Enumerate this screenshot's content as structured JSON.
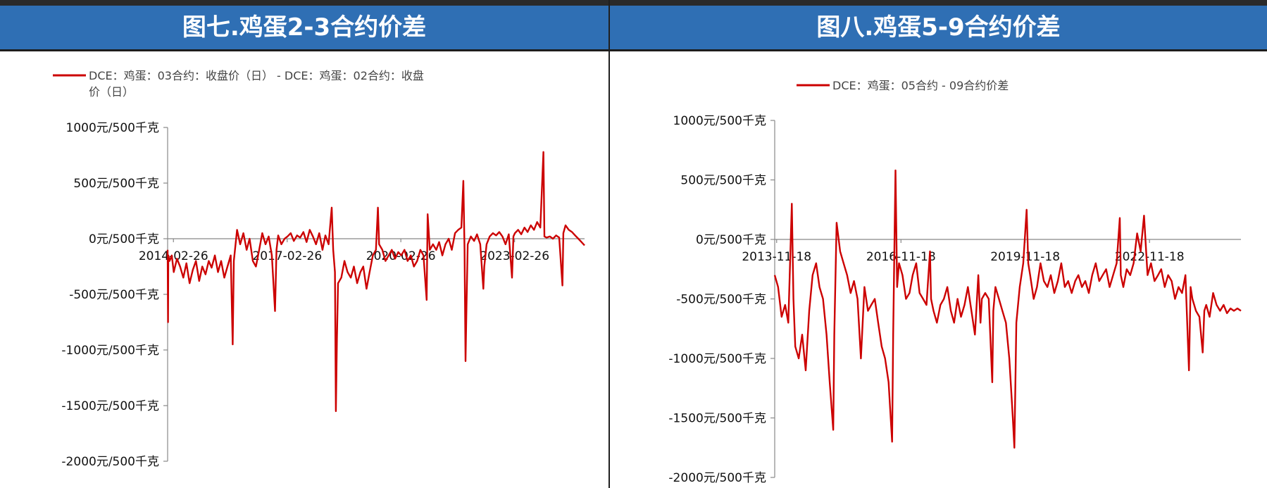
{
  "panels": [
    {
      "title": "图七.鸡蛋2-3合约价差"
    },
    {
      "title": "图八.鸡蛋5-9合约价差"
    }
  ],
  "chart_data": [
    {
      "type": "line",
      "title": "图七.鸡蛋2-3合约价差",
      "legend": [
        "DCE：鸡蛋：03合约：收盘价（日） - DCE：鸡蛋：02合约：收盘",
        "价（日）"
      ],
      "series_color": "#cc0000",
      "ylim": [
        -2000,
        1000
      ],
      "y_ticks": [
        1000,
        500,
        0,
        -500,
        -1000,
        -1500,
        -2000
      ],
      "y_tick_labels": [
        "1000元/500千克",
        "500元/500千克",
        "0元/500千克",
        "-500元/500千克",
        "-1000元/500千克",
        "-1500元/500千克",
        "-2000元/500千克"
      ],
      "x_ticks": [
        "2014-02-26",
        "2017-02-26",
        "2020-02-26",
        "2023-02-26"
      ],
      "x_range": [
        "2014-01-01",
        "2024-12-31"
      ],
      "points": [
        [
          "2014-01-01",
          -100
        ],
        [
          "2014-01-05",
          -750
        ],
        [
          "2014-01-08",
          -150
        ],
        [
          "2014-01-20",
          -200
        ],
        [
          "2014-02-10",
          -150
        ],
        [
          "2014-03-01",
          -300
        ],
        [
          "2014-04-01",
          -180
        ],
        [
          "2014-05-01",
          -250
        ],
        [
          "2014-06-01",
          -350
        ],
        [
          "2014-07-01",
          -220
        ],
        [
          "2014-08-01",
          -400
        ],
        [
          "2014-09-01",
          -280
        ],
        [
          "2014-10-01",
          -200
        ],
        [
          "2014-11-01",
          -380
        ],
        [
          "2014-12-01",
          -250
        ],
        [
          "2015-01-01",
          -320
        ],
        [
          "2015-02-01",
          -200
        ],
        [
          "2015-03-01",
          -260
        ],
        [
          "2015-04-01",
          -150
        ],
        [
          "2015-05-01",
          -300
        ],
        [
          "2015-06-01",
          -200
        ],
        [
          "2015-07-01",
          -350
        ],
        [
          "2015-08-01",
          -250
        ],
        [
          "2015-09-01",
          -150
        ],
        [
          "2015-09-20",
          -950
        ],
        [
          "2015-10-01",
          -200
        ],
        [
          "2015-11-01",
          80
        ],
        [
          "2015-12-01",
          -50
        ],
        [
          "2016-01-01",
          50
        ],
        [
          "2016-02-01",
          -100
        ],
        [
          "2016-03-01",
          0
        ],
        [
          "2016-04-01",
          -200
        ],
        [
          "2016-05-01",
          -250
        ],
        [
          "2016-06-01",
          -100
        ],
        [
          "2016-07-01",
          50
        ],
        [
          "2016-08-01",
          -50
        ],
        [
          "2016-09-01",
          20
        ],
        [
          "2016-10-01",
          -150
        ],
        [
          "2016-11-01",
          -650
        ],
        [
          "2016-11-15",
          -100
        ],
        [
          "2016-12-01",
          30
        ],
        [
          "2017-01-01",
          -50
        ],
        [
          "2017-02-01",
          0
        ],
        [
          "2017-03-01",
          20
        ],
        [
          "2017-04-01",
          50
        ],
        [
          "2017-05-01",
          -20
        ],
        [
          "2017-06-01",
          30
        ],
        [
          "2017-07-01",
          10
        ],
        [
          "2017-08-01",
          60
        ],
        [
          "2017-09-01",
          -30
        ],
        [
          "2017-10-01",
          80
        ],
        [
          "2017-11-01",
          20
        ],
        [
          "2017-12-01",
          -50
        ],
        [
          "2018-01-01",
          50
        ],
        [
          "2018-02-01",
          -100
        ],
        [
          "2018-03-01",
          30
        ],
        [
          "2018-04-01",
          -50
        ],
        [
          "2018-05-01",
          280
        ],
        [
          "2018-05-15",
          -100
        ],
        [
          "2018-06-01",
          -300
        ],
        [
          "2018-06-10",
          -1550
        ],
        [
          "2018-06-20",
          -900
        ],
        [
          "2018-07-01",
          -400
        ],
        [
          "2018-08-01",
          -350
        ],
        [
          "2018-09-01",
          -200
        ],
        [
          "2018-10-01",
          -300
        ],
        [
          "2018-11-01",
          -350
        ],
        [
          "2018-12-01",
          -250
        ],
        [
          "2019-01-01",
          -400
        ],
        [
          "2019-02-01",
          -300
        ],
        [
          "2019-03-01",
          -250
        ],
        [
          "2019-04-01",
          -450
        ],
        [
          "2019-05-01",
          -300
        ],
        [
          "2019-06-01",
          -150
        ],
        [
          "2019-07-01",
          -100
        ],
        [
          "2019-07-20",
          280
        ],
        [
          "2019-08-01",
          -50
        ],
        [
          "2019-09-01",
          -100
        ],
        [
          "2019-10-01",
          -200
        ],
        [
          "2019-11-01",
          -150
        ],
        [
          "2019-12-01",
          -100
        ],
        [
          "2020-01-01",
          -180
        ],
        [
          "2020-02-01",
          -120
        ],
        [
          "2020-03-01",
          -150
        ],
        [
          "2020-04-01",
          -100
        ],
        [
          "2020-05-01",
          -200
        ],
        [
          "2020-06-01",
          -150
        ],
        [
          "2020-07-01",
          -250
        ],
        [
          "2020-08-01",
          -200
        ],
        [
          "2020-09-01",
          -100
        ],
        [
          "2020-10-01",
          -150
        ],
        [
          "2020-11-01",
          -550
        ],
        [
          "2020-11-10",
          220
        ],
        [
          "2020-12-01",
          -100
        ],
        [
          "2021-01-01",
          -50
        ],
        [
          "2021-02-01",
          -100
        ],
        [
          "2021-03-01",
          -30
        ],
        [
          "2021-04-01",
          -150
        ],
        [
          "2021-05-01",
          -50
        ],
        [
          "2021-06-01",
          0
        ],
        [
          "2021-07-01",
          -100
        ],
        [
          "2021-08-01",
          50
        ],
        [
          "2021-09-01",
          80
        ],
        [
          "2021-10-01",
          100
        ],
        [
          "2021-10-20",
          520
        ],
        [
          "2021-11-01",
          -100
        ],
        [
          "2021-11-10",
          -1100
        ],
        [
          "2021-11-20",
          -600
        ],
        [
          "2021-12-01",
          -50
        ],
        [
          "2022-01-01",
          20
        ],
        [
          "2022-02-01",
          -20
        ],
        [
          "2022-03-01",
          40
        ],
        [
          "2022-04-01",
          -50
        ],
        [
          "2022-05-01",
          -450
        ],
        [
          "2022-05-10",
          -250
        ],
        [
          "2022-06-01",
          -50
        ],
        [
          "2022-07-01",
          20
        ],
        [
          "2022-08-01",
          50
        ],
        [
          "2022-09-01",
          30
        ],
        [
          "2022-10-01",
          60
        ],
        [
          "2022-11-01",
          20
        ],
        [
          "2022-12-01",
          -50
        ],
        [
          "2023-01-01",
          40
        ],
        [
          "2023-02-01",
          -350
        ],
        [
          "2023-02-15",
          20
        ],
        [
          "2023-03-01",
          50
        ],
        [
          "2023-04-01",
          80
        ],
        [
          "2023-05-01",
          40
        ],
        [
          "2023-06-01",
          100
        ],
        [
          "2023-07-01",
          60
        ],
        [
          "2023-08-01",
          120
        ],
        [
          "2023-09-01",
          80
        ],
        [
          "2023-10-01",
          150
        ],
        [
          "2023-11-01",
          100
        ],
        [
          "2023-12-01",
          780
        ],
        [
          "2023-12-10",
          20
        ],
        [
          "2024-01-01",
          10
        ],
        [
          "2024-02-01",
          20
        ],
        [
          "2024-03-01",
          0
        ],
        [
          "2024-04-01",
          30
        ],
        [
          "2024-05-01",
          10
        ],
        [
          "2024-06-01",
          -420
        ],
        [
          "2024-06-10",
          50
        ],
        [
          "2024-07-01",
          120
        ],
        [
          "2024-08-01",
          80
        ],
        [
          "2024-09-01",
          60
        ],
        [
          "2024-10-01",
          30
        ],
        [
          "2024-11-01",
          0
        ],
        [
          "2024-12-01",
          -30
        ],
        [
          "2024-12-31",
          -60
        ]
      ]
    },
    {
      "type": "line",
      "title": "图八.鸡蛋5-9合约价差",
      "legend": [
        "DCE：鸡蛋：05合约 - 09合约价差"
      ],
      "series_color": "#cc0000",
      "ylim": [
        -2000,
        1000
      ],
      "y_ticks": [
        1000,
        500,
        0,
        -500,
        -1000,
        -1500,
        -2000
      ],
      "y_tick_labels": [
        "1000元/500千克",
        "500元/500千克",
        "0元/500千克",
        "-500元/500千克",
        "-1000元/500千克",
        "-1500元/500千克",
        "-2000元/500千克"
      ],
      "x_ticks": [
        "2013-11-18",
        "2016-11-18",
        "2019-11-18",
        "2022-11-18"
      ],
      "x_range": [
        "2013-11-01",
        "2025-02-01"
      ],
      "points": [
        [
          "2013-11-01",
          -300
        ],
        [
          "2013-12-01",
          -400
        ],
        [
          "2014-01-01",
          -650
        ],
        [
          "2014-02-01",
          -550
        ],
        [
          "2014-03-01",
          -700
        ],
        [
          "2014-04-01",
          300
        ],
        [
          "2014-04-15",
          -500
        ],
        [
          "2014-05-01",
          -900
        ],
        [
          "2014-06-01",
          -1000
        ],
        [
          "2014-07-01",
          -800
        ],
        [
          "2014-08-01",
          -1100
        ],
        [
          "2014-09-01",
          -600
        ],
        [
          "2014-10-01",
          -300
        ],
        [
          "2014-11-01",
          -200
        ],
        [
          "2014-12-01",
          -400
        ],
        [
          "2015-01-01",
          -500
        ],
        [
          "2015-02-01",
          -800
        ],
        [
          "2015-03-01",
          -1200
        ],
        [
          "2015-04-01",
          -1600
        ],
        [
          "2015-04-10",
          -800
        ],
        [
          "2015-05-01",
          140
        ],
        [
          "2015-06-01",
          -100
        ],
        [
          "2015-07-01",
          -200
        ],
        [
          "2015-08-01",
          -300
        ],
        [
          "2015-09-01",
          -450
        ],
        [
          "2015-10-01",
          -350
        ],
        [
          "2015-11-01",
          -500
        ],
        [
          "2015-12-01",
          -1000
        ],
        [
          "2016-01-01",
          -400
        ],
        [
          "2016-02-01",
          -600
        ],
        [
          "2016-03-01",
          -550
        ],
        [
          "2016-04-01",
          -500
        ],
        [
          "2016-05-01",
          -700
        ],
        [
          "2016-06-01",
          -900
        ],
        [
          "2016-07-01",
          -1000
        ],
        [
          "2016-08-01",
          -1200
        ],
        [
          "2016-09-01",
          -1700
        ],
        [
          "2016-09-10",
          -800
        ],
        [
          "2016-10-01",
          580
        ],
        [
          "2016-10-15",
          -400
        ],
        [
          "2016-11-01",
          -200
        ],
        [
          "2016-12-01",
          -300
        ],
        [
          "2017-01-01",
          -500
        ],
        [
          "2017-02-01",
          -450
        ],
        [
          "2017-03-01",
          -300
        ],
        [
          "2017-04-01",
          -200
        ],
        [
          "2017-05-01",
          -450
        ],
        [
          "2017-06-01",
          -500
        ],
        [
          "2017-07-01",
          -550
        ],
        [
          "2017-08-01",
          -100
        ],
        [
          "2017-08-10",
          -500
        ],
        [
          "2017-09-01",
          -600
        ],
        [
          "2017-10-01",
          -700
        ],
        [
          "2017-11-01",
          -550
        ],
        [
          "2017-12-01",
          -500
        ],
        [
          "2018-01-01",
          -400
        ],
        [
          "2018-02-01",
          -600
        ],
        [
          "2018-03-01",
          -700
        ],
        [
          "2018-04-01",
          -500
        ],
        [
          "2018-05-01",
          -650
        ],
        [
          "2018-06-01",
          -550
        ],
        [
          "2018-07-01",
          -400
        ],
        [
          "2018-08-01",
          -600
        ],
        [
          "2018-09-01",
          -800
        ],
        [
          "2018-10-01",
          -300
        ],
        [
          "2018-10-20",
          -700
        ],
        [
          "2018-11-01",
          -500
        ],
        [
          "2018-12-01",
          -450
        ],
        [
          "2019-01-01",
          -500
        ],
        [
          "2019-02-01",
          -1200
        ],
        [
          "2019-02-10",
          -600
        ],
        [
          "2019-03-01",
          -400
        ],
        [
          "2019-04-01",
          -500
        ],
        [
          "2019-05-01",
          -600
        ],
        [
          "2019-06-01",
          -700
        ],
        [
          "2019-07-01",
          -1000
        ],
        [
          "2019-08-01",
          -1500
        ],
        [
          "2019-08-15",
          -1750
        ],
        [
          "2019-09-01",
          -700
        ],
        [
          "2019-10-01",
          -400
        ],
        [
          "2019-11-01",
          -200
        ],
        [
          "2019-12-01",
          250
        ],
        [
          "2019-12-15",
          -200
        ],
        [
          "2020-01-01",
          -300
        ],
        [
          "2020-02-01",
          -500
        ],
        [
          "2020-03-01",
          -400
        ],
        [
          "2020-04-01",
          -200
        ],
        [
          "2020-05-01",
          -350
        ],
        [
          "2020-06-01",
          -400
        ],
        [
          "2020-07-01",
          -300
        ],
        [
          "2020-08-01",
          -450
        ],
        [
          "2020-09-01",
          -350
        ],
        [
          "2020-10-01",
          -200
        ],
        [
          "2020-11-01",
          -400
        ],
        [
          "2020-12-01",
          -350
        ],
        [
          "2021-01-01",
          -450
        ],
        [
          "2021-02-01",
          -350
        ],
        [
          "2021-03-01",
          -300
        ],
        [
          "2021-04-01",
          -400
        ],
        [
          "2021-05-01",
          -350
        ],
        [
          "2021-06-01",
          -450
        ],
        [
          "2021-07-01",
          -300
        ],
        [
          "2021-08-01",
          -200
        ],
        [
          "2021-09-01",
          -350
        ],
        [
          "2021-10-01",
          -300
        ],
        [
          "2021-11-01",
          -250
        ],
        [
          "2021-12-01",
          -400
        ],
        [
          "2022-01-01",
          -300
        ],
        [
          "2022-02-01",
          -200
        ],
        [
          "2022-03-01",
          180
        ],
        [
          "2022-03-10",
          -300
        ],
        [
          "2022-04-01",
          -400
        ],
        [
          "2022-05-01",
          -250
        ],
        [
          "2022-06-01",
          -300
        ],
        [
          "2022-07-01",
          -200
        ],
        [
          "2022-08-01",
          50
        ],
        [
          "2022-09-01",
          -100
        ],
        [
          "2022-10-01",
          200
        ],
        [
          "2022-11-01",
          -300
        ],
        [
          "2022-12-01",
          -200
        ],
        [
          "2023-01-01",
          -350
        ],
        [
          "2023-02-01",
          -300
        ],
        [
          "2023-03-01",
          -250
        ],
        [
          "2023-04-01",
          -400
        ],
        [
          "2023-05-01",
          -300
        ],
        [
          "2023-06-01",
          -350
        ],
        [
          "2023-07-01",
          -500
        ],
        [
          "2023-08-01",
          -400
        ],
        [
          "2023-09-01",
          -450
        ],
        [
          "2023-10-01",
          -300
        ],
        [
          "2023-11-01",
          -1100
        ],
        [
          "2023-11-15",
          -400
        ],
        [
          "2023-12-01",
          -500
        ],
        [
          "2024-01-01",
          -600
        ],
        [
          "2024-02-01",
          -650
        ],
        [
          "2024-03-01",
          -950
        ],
        [
          "2024-03-15",
          -600
        ],
        [
          "2024-04-01",
          -550
        ],
        [
          "2024-05-01",
          -650
        ],
        [
          "2024-06-01",
          -450
        ],
        [
          "2024-07-01",
          -550
        ],
        [
          "2024-08-01",
          -600
        ],
        [
          "2024-09-01",
          -550
        ],
        [
          "2024-10-01",
          -620
        ],
        [
          "2024-11-01",
          -580
        ],
        [
          "2024-12-01",
          -600
        ],
        [
          "2025-01-01",
          -580
        ],
        [
          "2025-02-01",
          -600
        ]
      ]
    }
  ]
}
